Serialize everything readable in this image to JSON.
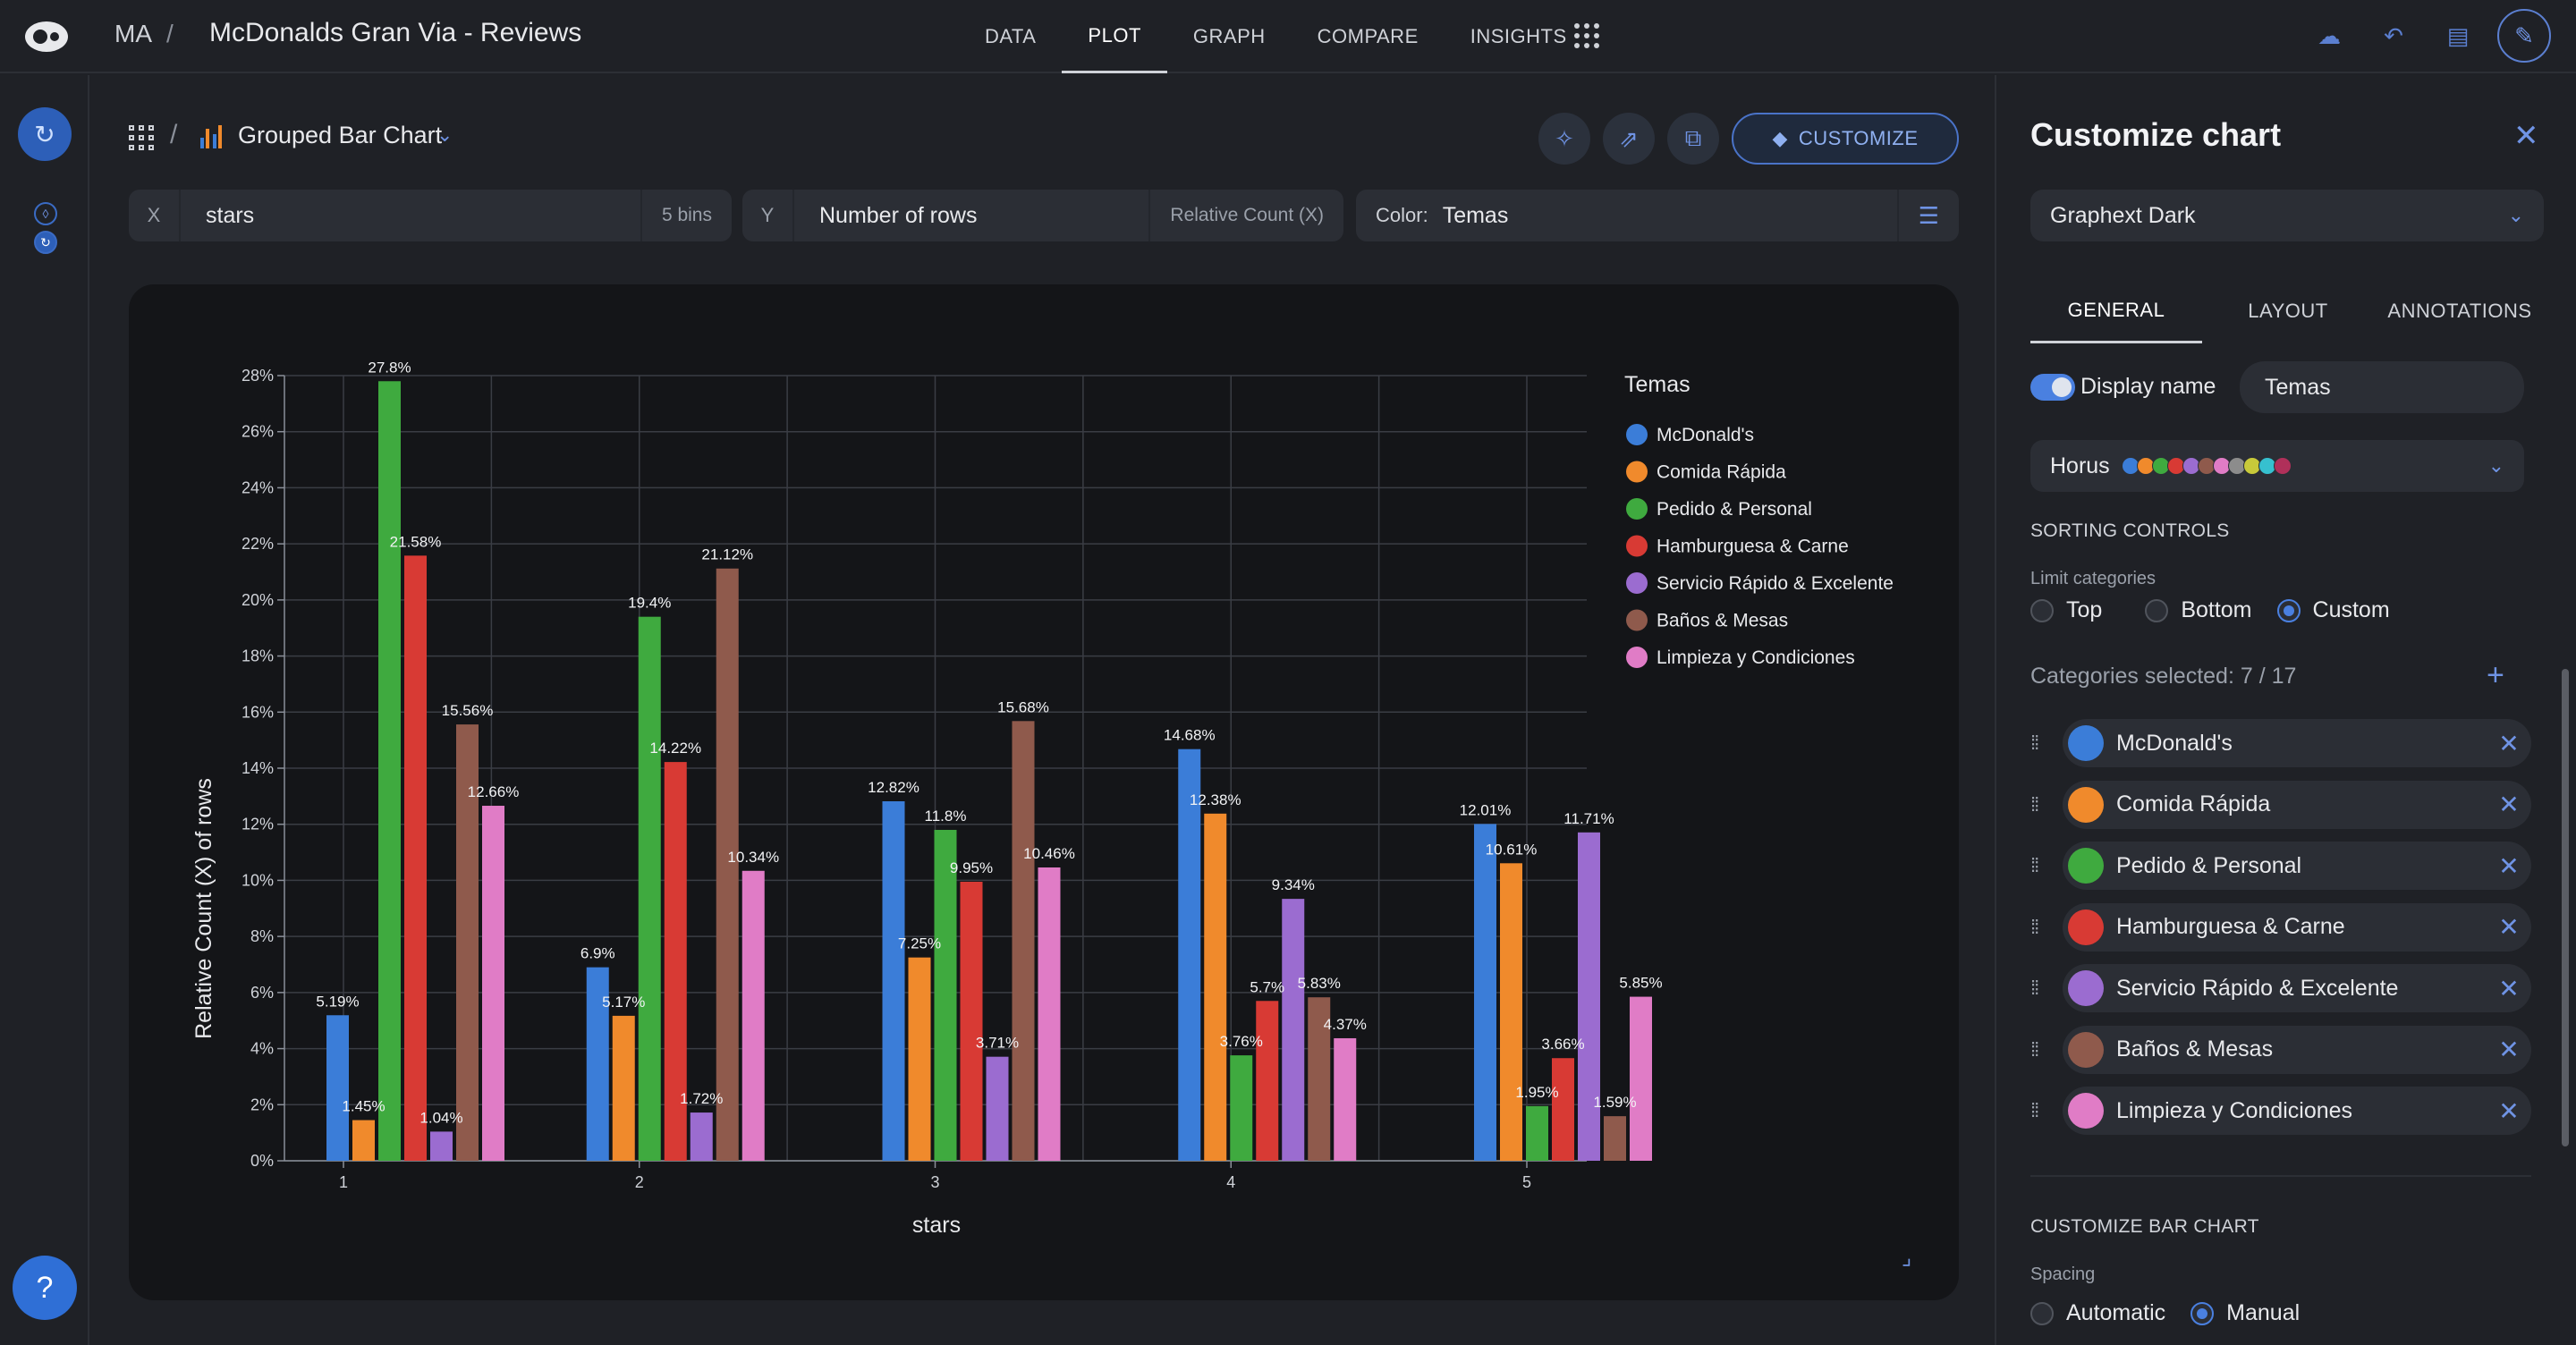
{
  "header": {
    "project_short": "MA",
    "title": "McDonalds Gran Via - Reviews",
    "nav": [
      "DATA",
      "PLOT",
      "GRAPH",
      "COMPARE",
      "INSIGHTS"
    ],
    "nav_active": "PLOT"
  },
  "toolbar": {
    "chart_name": "Grouped Bar Chart",
    "customize_label": "CUSTOMIZE"
  },
  "encoding": {
    "x_label": "X",
    "x_value": "stars",
    "x_bins": "5 bins",
    "y_label": "Y",
    "y_value": "Number of rows",
    "y_mode": "Relative Count (X)",
    "color_label": "Color:",
    "color_value": "Temas"
  },
  "panel": {
    "title": "Customize chart",
    "theme": "Graphext Dark",
    "tabs": [
      "GENERAL",
      "LAYOUT",
      "ANNOTATIONS"
    ],
    "active_tab": "GENERAL",
    "display_name_label": "Display name",
    "display_name_value": "Temas",
    "palette_name": "Horus",
    "palette_colors": [
      "#3b7dd8",
      "#f08a2c",
      "#3faa3f",
      "#d83a34",
      "#9b6cd0",
      "#8f5a4c",
      "#e07cc6",
      "#8c8c8c",
      "#c8c93a",
      "#36c0cf",
      "#b0305a"
    ],
    "sorting_controls": "SORTING CONTROLS",
    "limit_categories": "Limit categories",
    "limit_options": [
      "Top",
      "Bottom",
      "Custom"
    ],
    "limit_selected": "Custom",
    "categories_selected": "Categories selected: 7 / 17",
    "customize_bar_chart": "CUSTOMIZE BAR CHART",
    "spacing_label": "Spacing",
    "spacing_options": [
      "Automatic",
      "Manual"
    ],
    "spacing_selected": "Manual"
  },
  "chart_data": {
    "type": "bar",
    "categories": [
      "1",
      "2",
      "3",
      "4",
      "5"
    ],
    "xlabel": "stars",
    "ylabel": "Relative Count (X) of rows",
    "ylim": [
      0,
      28
    ],
    "y_ticks": [
      "0%",
      "2%",
      "4%",
      "6%",
      "8%",
      "10%",
      "12%",
      "14%",
      "16%",
      "18%",
      "20%",
      "22%",
      "24%",
      "26%",
      "28%"
    ],
    "legend_title": "Temas",
    "legend_position": "right",
    "grid": true,
    "series": [
      {
        "name": "McDonald's",
        "color": "#3b7dd8",
        "values": [
          5.19,
          6.9,
          12.82,
          14.68,
          12.01
        ],
        "labels": [
          "5.19%",
          "6.9%",
          "12.82%",
          "14.68%",
          "12.01%"
        ]
      },
      {
        "name": "Comida Rápida",
        "color": "#f08a2c",
        "values": [
          1.45,
          5.17,
          7.25,
          12.38,
          10.61
        ],
        "labels": [
          "1.45%",
          "5.17%",
          "7.25%",
          "12.38%",
          "10.61%"
        ]
      },
      {
        "name": "Pedido & Personal",
        "color": "#3faa3f",
        "values": [
          27.8,
          19.4,
          11.8,
          3.76,
          1.95
        ],
        "labels": [
          "27.8%",
          "19.4%",
          "11.8%",
          "3.76%",
          "1.95%"
        ]
      },
      {
        "name": "Hamburguesa & Carne",
        "color": "#d83a34",
        "values": [
          21.58,
          14.22,
          9.95,
          5.7,
          3.66
        ],
        "labels": [
          "21.58%",
          "14.22%",
          "9.95%",
          "5.7%",
          "3.66%"
        ]
      },
      {
        "name": "Servicio Rápido & Excelente",
        "color": "#9b6cd0",
        "values": [
          1.04,
          1.72,
          3.71,
          9.34,
          11.71
        ],
        "labels": [
          "1.04%",
          "1.72%",
          "3.71%",
          "9.34%",
          "11.71%"
        ]
      },
      {
        "name": "Baños & Mesas",
        "color": "#8f5a4c",
        "values": [
          15.56,
          21.12,
          15.68,
          5.83,
          1.59
        ],
        "labels": [
          "15.56%",
          "21.12%",
          "15.68%",
          "5.83%",
          "1.59%"
        ]
      },
      {
        "name": "Limpieza y Condiciones",
        "color": "#e07cc6",
        "values": [
          12.66,
          10.34,
          10.46,
          4.37,
          5.85
        ],
        "labels": [
          "12.66%",
          "10.34%",
          "10.46%",
          "4.37%",
          "5.85%"
        ]
      }
    ]
  }
}
